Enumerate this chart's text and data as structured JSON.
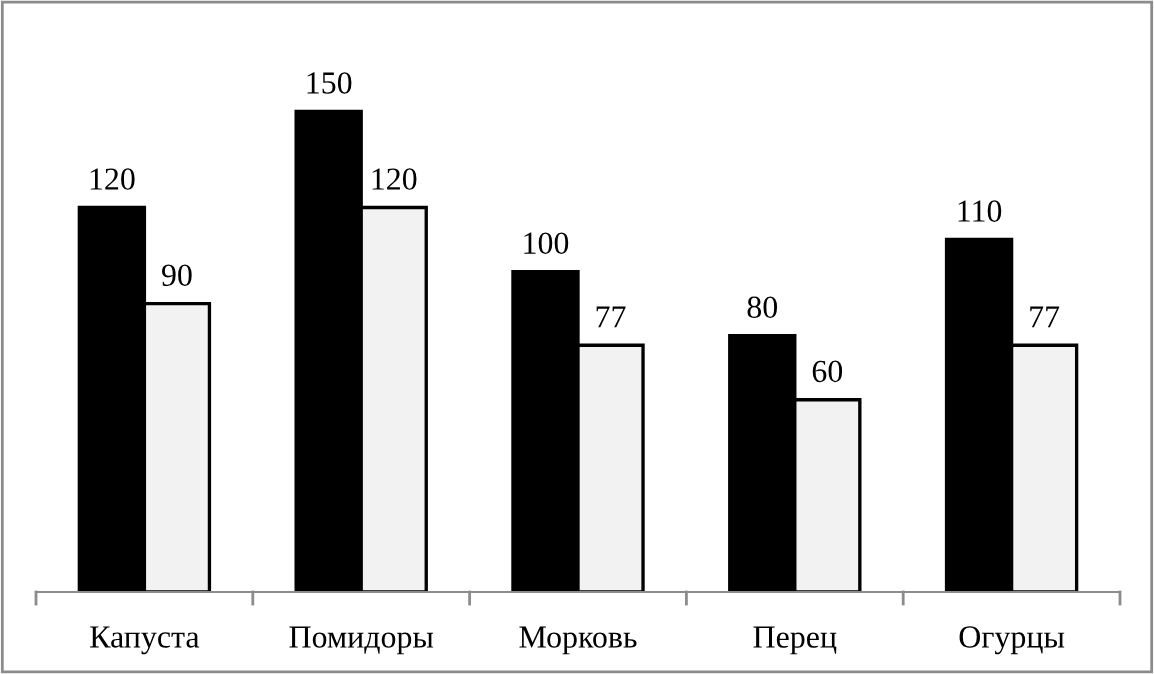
{
  "chart_data": {
    "type": "bar",
    "categories": [
      "Капуста",
      "Помидоры",
      "Морковь",
      "Перец",
      "Огурцы"
    ],
    "series": [
      {
        "color": "#000000",
        "values": [
          120,
          150,
          100,
          80,
          110
        ]
      },
      {
        "color": "#f2f2f2",
        "values": [
          90,
          120,
          77,
          60,
          77
        ]
      }
    ],
    "data_labels": true,
    "grid": false,
    "legend": false
  }
}
